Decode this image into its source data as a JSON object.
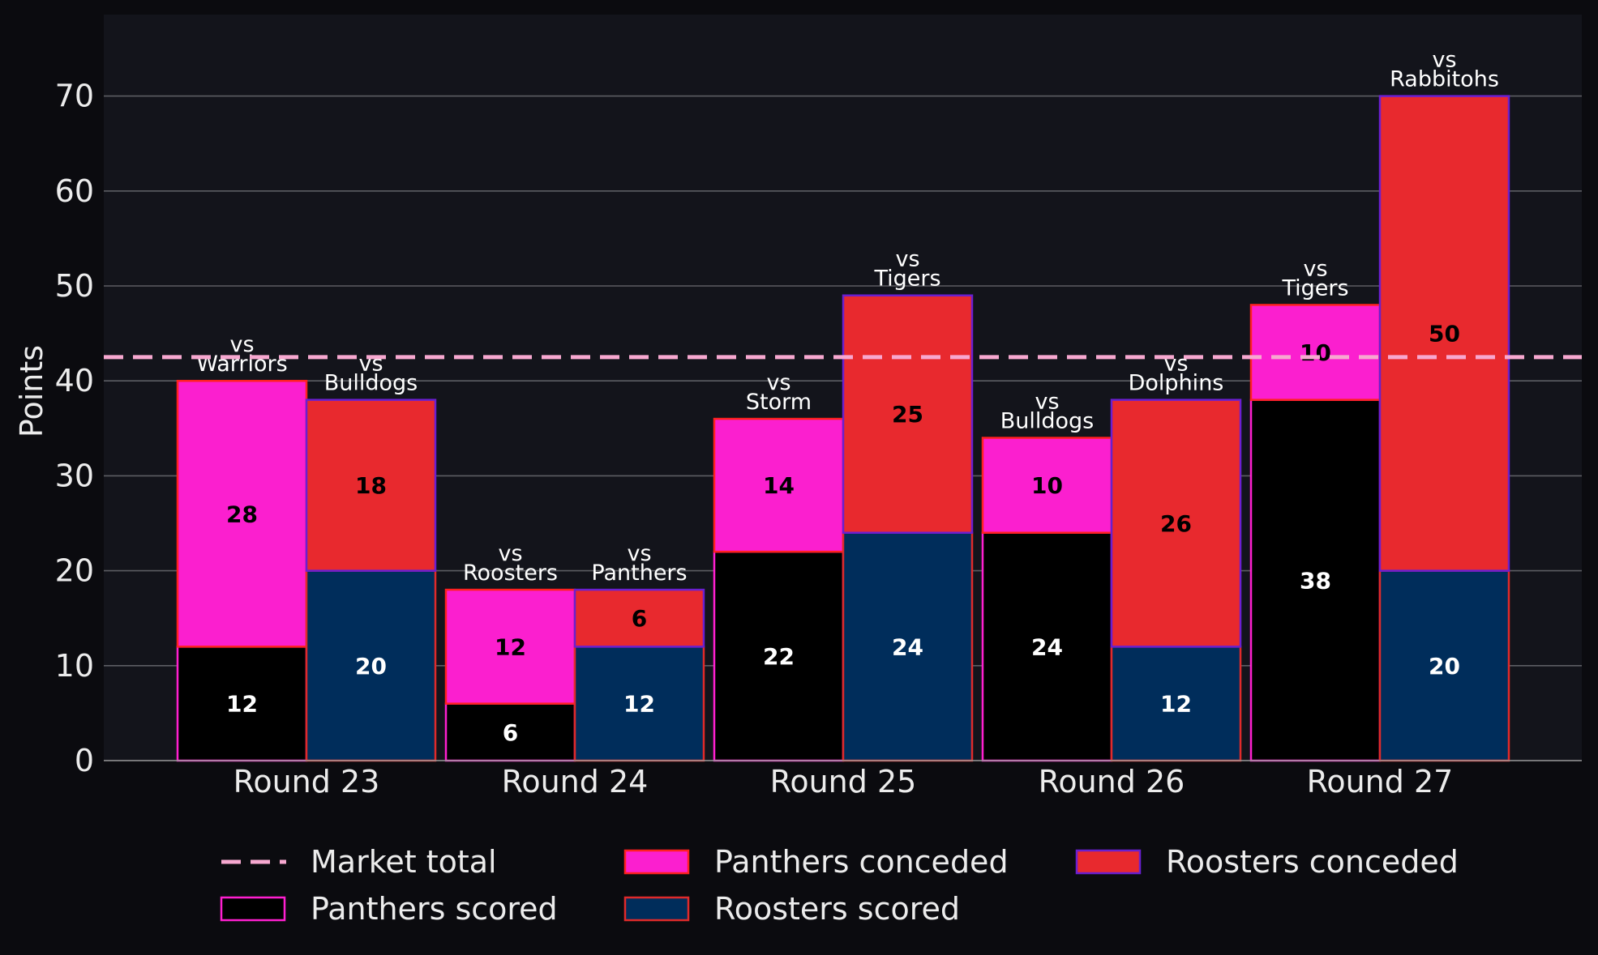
{
  "chart_data": {
    "type": "bar",
    "categories": [
      "Round 23",
      "Round 24",
      "Round 25",
      "Round 26",
      "Round 27"
    ],
    "ylabel": "Points",
    "ylim": [
      0,
      78
    ],
    "yticks": [
      0,
      10,
      20,
      30,
      40,
      50,
      60,
      70
    ],
    "grid": true,
    "legend_position": "bottom",
    "market_total": 42.5,
    "series": [
      {
        "name": "Panthers scored",
        "stack": "Panthers",
        "color": "#000000",
        "edge": "#ff1fd0",
        "values": [
          12,
          6,
          22,
          24,
          38
        ],
        "label_color": "#ffffff"
      },
      {
        "name": "Panthers conceded",
        "stack": "Panthers",
        "color": "#fb1fcf",
        "edge": "#ff2020",
        "values": [
          28,
          12,
          14,
          10,
          10
        ],
        "label_color": "#000000"
      },
      {
        "name": "Roosters scored",
        "stack": "Roosters",
        "color": "#002d5b",
        "edge": "#e02a2a",
        "values": [
          20,
          12,
          24,
          12,
          20
        ],
        "label_color": "#ffffff"
      },
      {
        "name": "Roosters conceded",
        "stack": "Roosters",
        "color": "#e8292e",
        "edge": "#6a1fd0",
        "values": [
          18,
          6,
          25,
          26,
          50
        ],
        "label_color": "#000000"
      }
    ],
    "opponents": {
      "Panthers": [
        "vs\nWarriors",
        "vs\nRoosters",
        "vs\nStorm",
        "vs\nBulldogs",
        "vs\nTigers"
      ],
      "Roosters": [
        "vs\nBulldogs",
        "vs\nPanthers",
        "vs\nTigers",
        "vs\nDolphins",
        "vs\nRabbitohs"
      ]
    },
    "market_line_name": "Market total",
    "market_line_color": "#f7a8d0"
  }
}
